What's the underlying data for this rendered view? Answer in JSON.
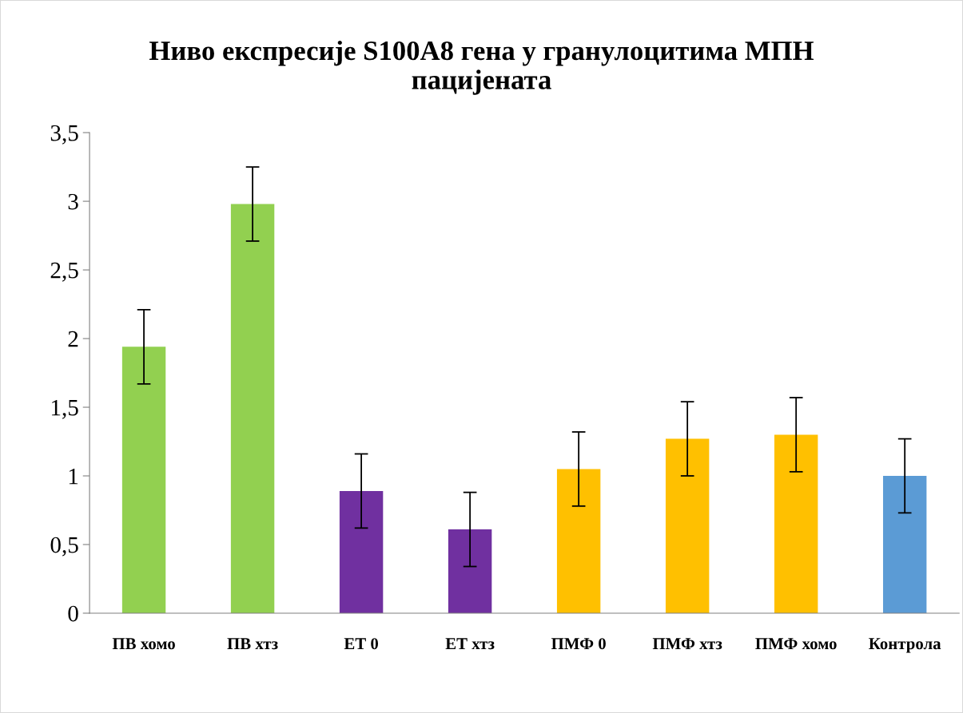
{
  "chart_data": {
    "type": "bar",
    "title": "Ниво експресије S100A8 гена у гранулоцитима МПН\nпацијената",
    "categories": [
      "ПВ хомо",
      "ПВ хтз",
      "ЕТ 0",
      "ЕТ хтз",
      "ПМФ 0",
      "ПМФ хтз",
      "ПМФ хомо",
      "Контрола"
    ],
    "values": [
      1.94,
      2.98,
      0.89,
      0.61,
      1.05,
      1.27,
      1.3,
      1.0
    ],
    "errors": [
      0.27,
      0.27,
      0.27,
      0.27,
      0.27,
      0.27,
      0.27,
      0.27
    ],
    "colors": [
      "#92d050",
      "#92d050",
      "#7030a0",
      "#7030a0",
      "#ffc000",
      "#ffc000",
      "#ffc000",
      "#5b9bd5"
    ],
    "ylim": [
      0,
      3.5
    ],
    "yticks": [
      0,
      {
        "value": 0.5,
        "label": "0,5"
      },
      1,
      {
        "value": 1.5,
        "label": "1,5"
      },
      2,
      {
        "value": 2.5,
        "label": "2,5"
      },
      3,
      {
        "value": 3.5,
        "label": "3,5"
      }
    ],
    "grid": false,
    "legend": false
  }
}
